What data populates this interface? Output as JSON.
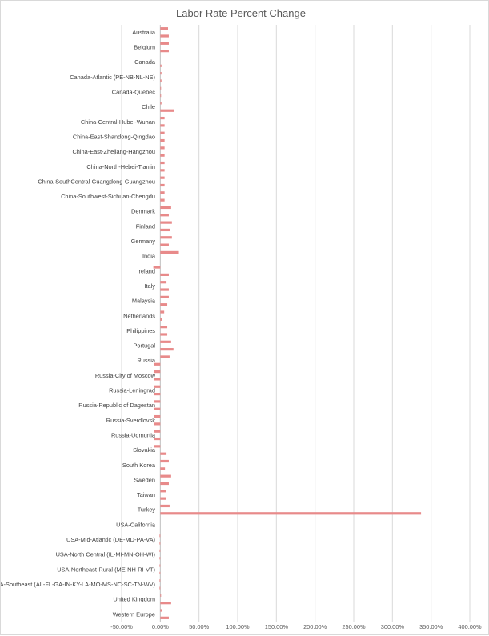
{
  "chart_data": {
    "type": "bar",
    "orientation": "horizontal",
    "title": "Labor Rate Percent Change",
    "bar_color": "#e88a8a",
    "xlim": [
      -50,
      400
    ],
    "x_ticks": [
      -50,
      0,
      50,
      100,
      150,
      200,
      250,
      300,
      350,
      400
    ],
    "x_tick_labels": [
      "-50.00%",
      "0.00%",
      "50.00%",
      "100.00%",
      "150.00%",
      "200.00%",
      "250.00%",
      "300.00%",
      "350.00%",
      "400.00%"
    ],
    "grid": true,
    "legend": "none",
    "categories": [
      "Australia",
      "Belgium",
      "Canada",
      "Canada-Atlantic (PE-NB-NL-NS)",
      "Canada-Quebec",
      "Chile",
      "China-Central-Hubei-Wuhan",
      "China-East-Shandong-Qingdao",
      "China-East-Zhejiang-Hangzhou",
      "China-North-Hebei-Tianjin",
      "China-SouthCentral-Guangdong-Guangzhou",
      "China-Southwest-Sichuan-Chengdu",
      "Denmark",
      "Finland",
      "Germany",
      "India",
      "Ireland",
      "Italy",
      "Malaysia",
      "Netherlands",
      "Philippines",
      "Portugal",
      "Russia",
      "Russia-City of Moscow",
      "Russia-Leningrad",
      "Russia-Republic of Dagestan",
      "Russia-Sverdlovsk",
      "Russia-Udmurtia",
      "Slovakia",
      "South Korea",
      "Sweden",
      "Taiwan",
      "Turkey",
      "USA-California",
      "USA-Mid-Atlantic (DE-MD-PA-VA)",
      "USA-North Central (IL-MI-MN-OH-WI)",
      "USA-Northeast-Rural (ME-NH-RI-VT)",
      "USA-Southeast (AL-FL-GA-IN-KY-LA-MO-MS-NC-SC-TN-WV)",
      "United Kingdom",
      "Western Europe"
    ],
    "values": [
      [
        10,
        11
      ],
      [
        11,
        11
      ],
      [
        0,
        1.5
      ],
      [
        1.5,
        1.5
      ],
      [
        1,
        1
      ],
      [
        1.5,
        18
      ],
      [
        5.5,
        5.5
      ],
      [
        5.5,
        5.5
      ],
      [
        5.5,
        5.5
      ],
      [
        5.5,
        5.5
      ],
      [
        5.5,
        5.5
      ],
      [
        5.5,
        5.5
      ],
      [
        14,
        11
      ],
      [
        15,
        13
      ],
      [
        15,
        11
      ],
      [
        24,
        0
      ],
      [
        -9,
        11
      ],
      [
        8,
        11
      ],
      [
        11,
        9
      ],
      [
        5,
        2
      ],
      [
        9,
        9
      ],
      [
        14,
        17
      ],
      [
        12,
        -8
      ],
      [
        -8,
        -8
      ],
      [
        -8,
        -8
      ],
      [
        -8,
        -8
      ],
      [
        -8,
        -8
      ],
      [
        -8,
        -8
      ],
      [
        -8,
        8
      ],
      [
        11,
        6
      ],
      [
        14,
        11
      ],
      [
        7,
        7
      ],
      [
        12,
        337
      ],
      [
        0,
        0
      ],
      [
        -1,
        -1
      ],
      [
        -1,
        -1
      ],
      [
        -1,
        -1
      ],
      [
        -1,
        -1
      ],
      [
        1,
        14
      ],
      [
        2,
        11
      ]
    ]
  }
}
